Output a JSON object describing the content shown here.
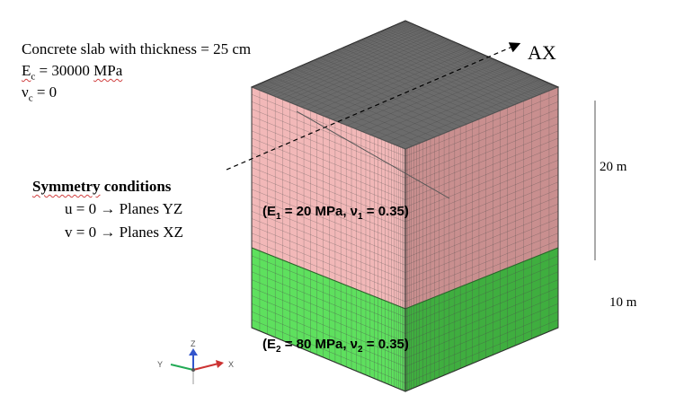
{
  "slab": {
    "line1": "Concrete slab with thickness = 25 cm",
    "ec_symbol": "E",
    "ec_sub": "c",
    "ec_value": " = 30000 ",
    "ec_unit": "MPa",
    "nu_symbol": "ν",
    "nu_sub": "c",
    "nu_value": " = 0"
  },
  "symmetry": {
    "heading_word1": "Symmetry",
    "heading_word2": " conditions",
    "u_cond": "u = 0 → Planes YZ",
    "v_cond": "v = 0 → Planes XZ"
  },
  "layers": {
    "upper_open": "(E",
    "upper_sub": "1",
    "upper_mid": " = 20 MPa, ν",
    "upper_sub2": "1",
    "upper_close": " = 0.35)",
    "lower_open": "(E",
    "lower_sub": "2",
    "lower_mid": " = 80 MPa, ν",
    "lower_sub2": "2",
    "lower_close": " = 0.35)"
  },
  "dimensions": {
    "upper": "20 m",
    "lower": "10 m"
  },
  "axis": {
    "label": "AX"
  },
  "triad": {
    "z": "Z",
    "y": "Y",
    "x": "X"
  },
  "colors": {
    "slab_top": "#6b6b6b",
    "upper_front": "#f2b8b8",
    "upper_side": "#c98f8f",
    "lower_front": "#5ee05e",
    "lower_side": "#3fae3f",
    "mesh": "#4a4a4a"
  }
}
